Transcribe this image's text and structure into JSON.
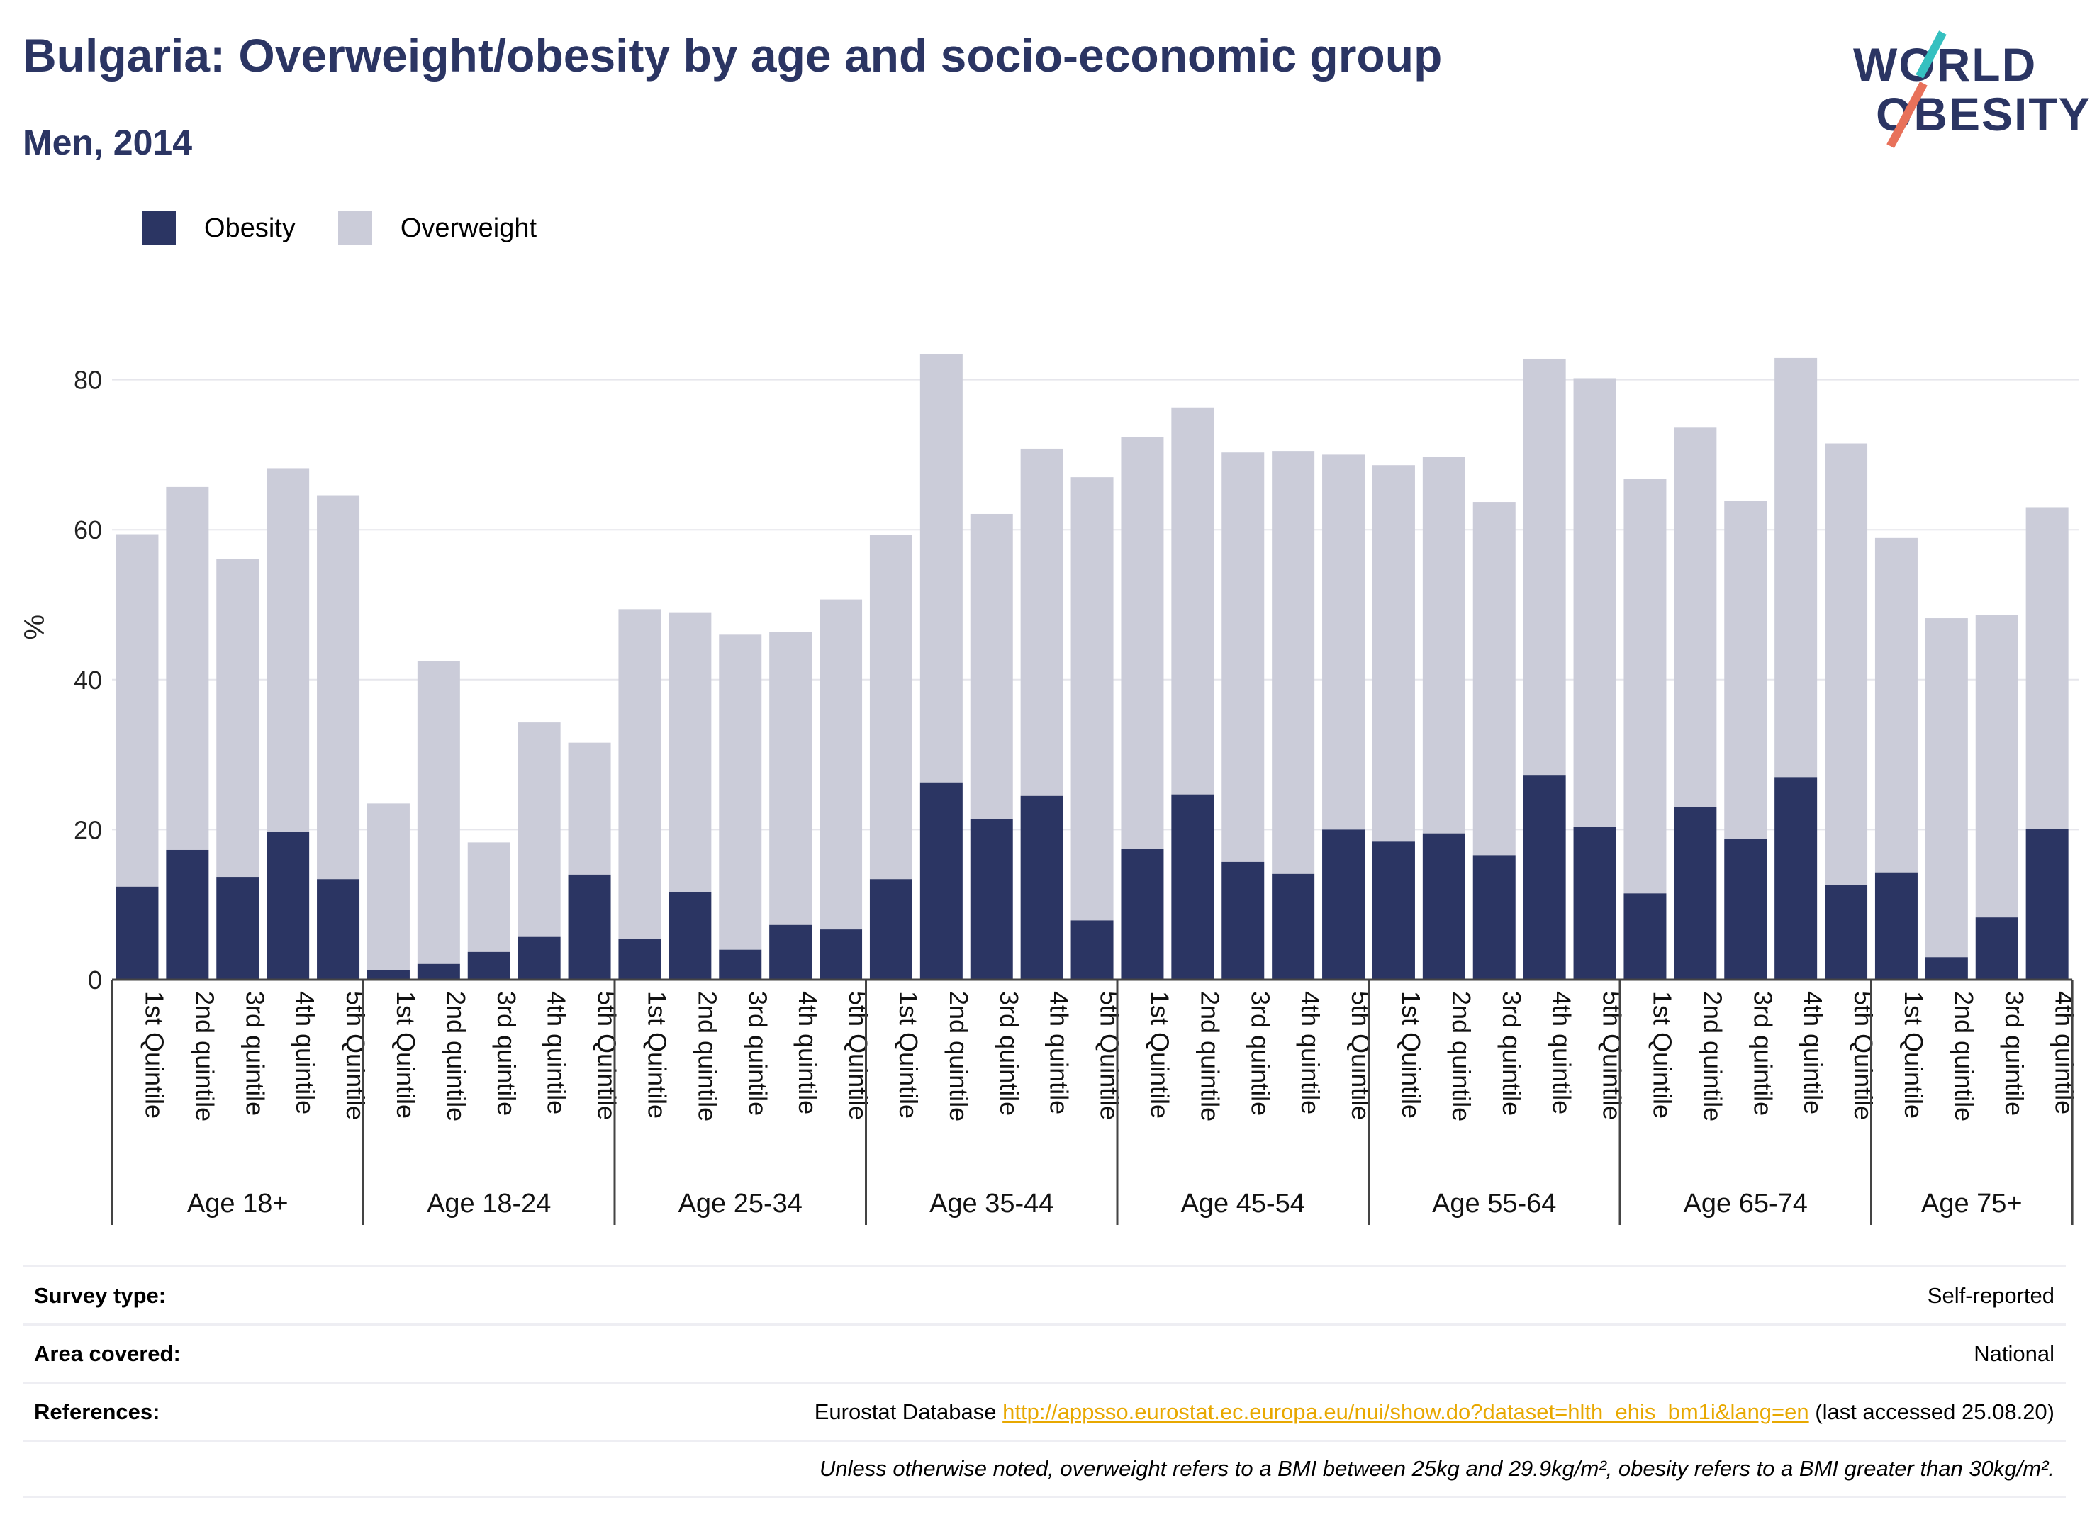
{
  "header": {
    "title": "Bulgaria: Overweight/obesity by age and socio-economic group",
    "subtitle": "Men, 2014",
    "logo_line1": "WORLD",
    "logo_line2": "OBESITY"
  },
  "colors": {
    "obesity": "#2b3563",
    "overweight": "#cbccd9",
    "grid": "#e6e6ec",
    "link": "#e8a800"
  },
  "chart_data": {
    "type": "bar",
    "stacked": true,
    "title": "Bulgaria: Overweight/obesity by age and socio-economic group",
    "subtitle": "Men, 2014",
    "ylabel": "%",
    "xlabel": "",
    "ylim": [
      0,
      85
    ],
    "yticks": [
      0,
      20,
      40,
      60,
      80
    ],
    "grid": true,
    "legend_position": "top-left",
    "groups": [
      {
        "label": "Age 18+",
        "categories": [
          "1st Quintile",
          "2nd quintile",
          "3rd quintile",
          "4th quintile",
          "5th Quintile"
        ]
      },
      {
        "label": "Age 18-24",
        "categories": [
          "1st Quintile",
          "2nd quintile",
          "3rd quintile",
          "4th quintile",
          "5th Quintile"
        ]
      },
      {
        "label": "Age 25-34",
        "categories": [
          "1st Quintile",
          "2nd quintile",
          "3rd quintile",
          "4th quintile",
          "5th Quintile"
        ]
      },
      {
        "label": "Age 35-44",
        "categories": [
          "1st Quintile",
          "2nd quintile",
          "3rd quintile",
          "4th quintile",
          "5th Quintile"
        ]
      },
      {
        "label": "Age 45-54",
        "categories": [
          "1st Quintile",
          "2nd quintile",
          "3rd quintile",
          "4th quintile",
          "5th Quintile"
        ]
      },
      {
        "label": "Age 55-64",
        "categories": [
          "1st Quintile",
          "2nd quintile",
          "3rd quintile",
          "4th quintile",
          "5th Quintile"
        ]
      },
      {
        "label": "Age 65-74",
        "categories": [
          "1st Quintile",
          "2nd quintile",
          "3rd quintile",
          "4th quintile",
          "5th Quintile"
        ]
      },
      {
        "label": "Age 75+",
        "categories": [
          "1st Quintile",
          "2nd quintile",
          "3rd quintile",
          "4th quintile"
        ]
      }
    ],
    "series": [
      {
        "name": "Obesity",
        "values": [
          12.4,
          17.3,
          13.7,
          19.7,
          13.4,
          1.3,
          2.1,
          3.7,
          5.7,
          14.0,
          5.4,
          11.7,
          4.0,
          7.3,
          6.7,
          13.4,
          26.3,
          21.4,
          24.5,
          7.9,
          17.4,
          24.7,
          15.7,
          14.1,
          20.0,
          18.4,
          19.5,
          16.6,
          27.3,
          20.4,
          11.5,
          23.0,
          18.8,
          27.0,
          12.6,
          14.3,
          3.0,
          8.3,
          20.1
        ]
      },
      {
        "name": "Overweight",
        "values": [
          47.0,
          48.4,
          42.4,
          48.5,
          51.2,
          22.2,
          40.4,
          14.6,
          28.6,
          17.6,
          44.0,
          37.2,
          42.0,
          39.1,
          44.0,
          45.9,
          57.1,
          40.7,
          46.3,
          59.1,
          55.0,
          51.6,
          54.6,
          56.4,
          50.0,
          50.2,
          50.2,
          47.1,
          55.5,
          59.8,
          55.3,
          50.6,
          45.0,
          55.9,
          58.9,
          44.6,
          45.2,
          40.3,
          42.9
        ]
      }
    ]
  },
  "info": {
    "survey_label": "Survey type:",
    "survey_value": "Self-reported",
    "area_label": "Area covered:",
    "area_value": "National",
    "references_label": "References:",
    "references_prefix": "Eurostat Database ",
    "references_link": "http://appsso.eurostat.ec.europa.eu/nui/show.do?dataset=hlth_ehis_bm1i&lang=en",
    "references_suffix": " (last accessed 25.08.20)",
    "note": "Unless otherwise noted, overweight refers to a BMI between 25kg and 29.9kg/m², obesity refers to a BMI greater than 30kg/m²."
  }
}
